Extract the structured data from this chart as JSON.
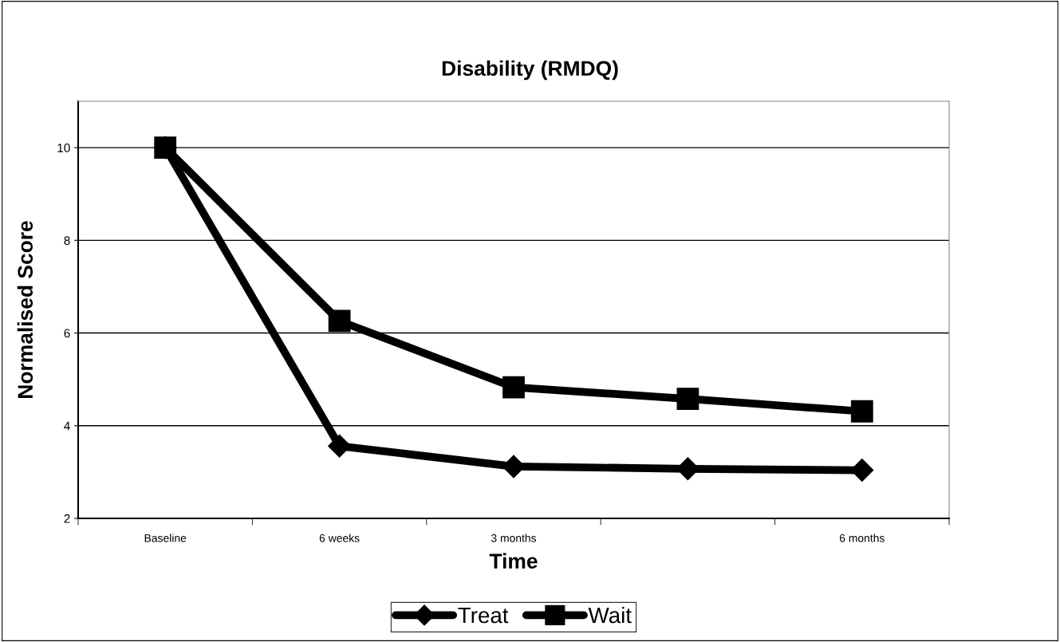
{
  "chart_data": {
    "type": "line",
    "title": "Disability (RMDQ)",
    "xlabel": "Time",
    "ylabel": "Normalised Score",
    "categories": [
      "Baseline",
      "6 weeks",
      "3 months",
      null,
      "6 months"
    ],
    "series": [
      {
        "name": "Treat",
        "color": "#000000",
        "marker": "diamond",
        "values": [
          10.0,
          3.56,
          3.12,
          3.07,
          3.04
        ]
      },
      {
        "name": "Wait",
        "color": "#000000",
        "marker": "square",
        "values": [
          10.0,
          6.26,
          4.83,
          4.58,
          4.31
        ]
      }
    ],
    "ylim": [
      2,
      11
    ],
    "yticks": [
      2,
      4,
      6,
      8,
      10
    ],
    "grid": "y",
    "legend": "bottom",
    "line_style": "solid"
  }
}
